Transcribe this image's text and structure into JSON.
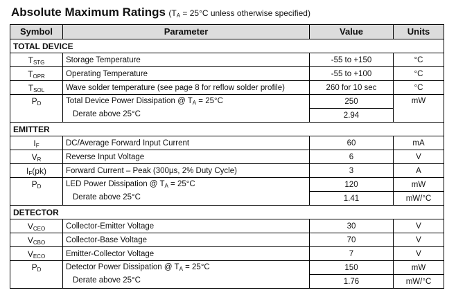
{
  "title": {
    "main": "Absolute Maximum Ratings",
    "cond_pre": "(T",
    "cond_sub": "A",
    "cond_post": " = 25°C unless otherwise specified)"
  },
  "headers": {
    "symbol": "Symbol",
    "parameter": "Parameter",
    "value": "Value",
    "units": "Units"
  },
  "sections": {
    "total_device": "TOTAL DEVICE",
    "emitter": "EMITTER",
    "detector": "DETECTOR"
  },
  "rows": {
    "tstg": {
      "sym": "T",
      "sub": "STG",
      "param": "Storage Temperature",
      "value": "-55 to +150",
      "unit": "°C"
    },
    "topr": {
      "sym": "T",
      "sub": "OPR",
      "param": "Operating Temperature",
      "value": "-55 to +100",
      "unit": "°C"
    },
    "tsol": {
      "sym": "T",
      "sub": "SOL",
      "param": "Wave solder temperature (see page 8 for reflow solder profile)",
      "value": "260 for 10 sec",
      "unit": "°C"
    },
    "pd_total": {
      "sym": "P",
      "sub": "D",
      "param_pre": "Total Device Power Dissipation @ T",
      "param_sub": "A",
      "param_post": " = 25°C",
      "value": "250",
      "unit": "mW",
      "derate": "Derate above 25°C",
      "derate_value": "2.94",
      "derate_unit": ""
    },
    "if": {
      "sym": "I",
      "sub": "F",
      "param": "DC/Average Forward Input Current",
      "value": "60",
      "unit": "mA"
    },
    "vr": {
      "sym": "V",
      "sub": "R",
      "param": "Reverse Input Voltage",
      "value": "6",
      "unit": "V"
    },
    "ifpk": {
      "sym": "I",
      "sub": "F",
      "sym_suffix": "(pk)",
      "param": "Forward Current – Peak (300µs, 2% Duty Cycle)",
      "value": "3",
      "unit": "A"
    },
    "pd_led": {
      "sym": "P",
      "sub": "D",
      "param_pre": "LED Power Dissipation @ T",
      "param_sub": "A",
      "param_post": " = 25°C",
      "value": "120",
      "unit": "mW",
      "derate": "Derate above 25°C",
      "derate_value": "1.41",
      "derate_unit": "mW/°C"
    },
    "vceo": {
      "sym": "V",
      "sub": "CEO",
      "param": "Collector-Emitter Voltage",
      "value": "30",
      "unit": "V"
    },
    "vcbo": {
      "sym": "V",
      "sub": "CBO",
      "param": "Collector-Base Voltage",
      "value": "70",
      "unit": "V"
    },
    "veco": {
      "sym": "V",
      "sub": "ECO",
      "param": "Emitter-Collector Voltage",
      "value": "7",
      "unit": "V"
    },
    "pd_det": {
      "sym": "P",
      "sub": "D",
      "param_pre": "Detector Power Dissipation @ T",
      "param_sub": "A",
      "param_post": " = 25°C",
      "value": "150",
      "unit": "mW",
      "derate": "Derate above 25°C",
      "derate_value": "1.76",
      "derate_unit": "mW/°C"
    }
  }
}
